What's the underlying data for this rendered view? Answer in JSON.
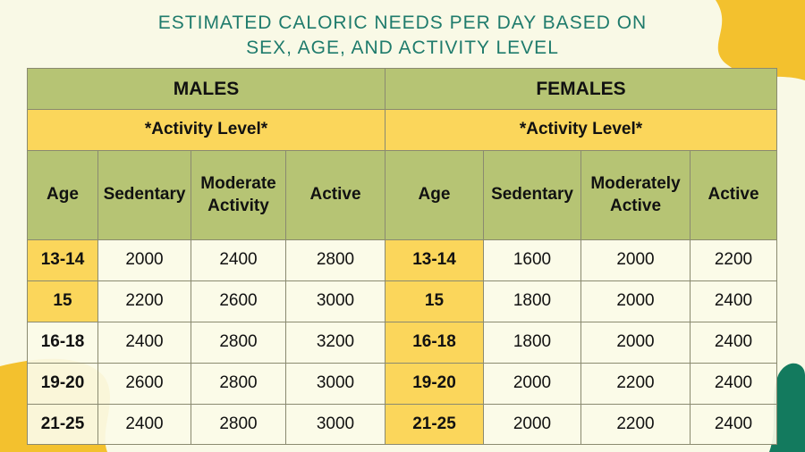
{
  "title": [
    "ESTIMATED CALORIC NEEDS PER DAY BASED ON",
    "SEX, AGE, AND ACTIVITY LEVEL"
  ],
  "table": {
    "groups": [
      {
        "name": "MALES",
        "activity": "*Activity Level*",
        "columns": [
          "Age",
          "Sedentary",
          "Moderate Activity",
          "Active"
        ],
        "rows": [
          [
            "13-14",
            2000,
            2400,
            2800
          ],
          [
            "15",
            2200,
            2600,
            3000
          ],
          [
            "16-18",
            2400,
            2800,
            3200
          ],
          [
            "19-20",
            2600,
            2800,
            3000
          ],
          [
            "21-25",
            2400,
            2800,
            3000
          ]
        ]
      },
      {
        "name": "FEMALES",
        "activity": "*Activity Level*",
        "columns": [
          "Age",
          "Sedentary",
          "Moderately Active",
          "Active"
        ],
        "rows": [
          [
            "13-14",
            1600,
            2000,
            2200
          ],
          [
            "15",
            1800,
            2000,
            2400
          ],
          [
            "16-18",
            1800,
            2000,
            2400
          ],
          [
            "19-20",
            2000,
            2200,
            2400
          ],
          [
            "21-25",
            2000,
            2200,
            2400
          ]
        ]
      }
    ]
  }
}
